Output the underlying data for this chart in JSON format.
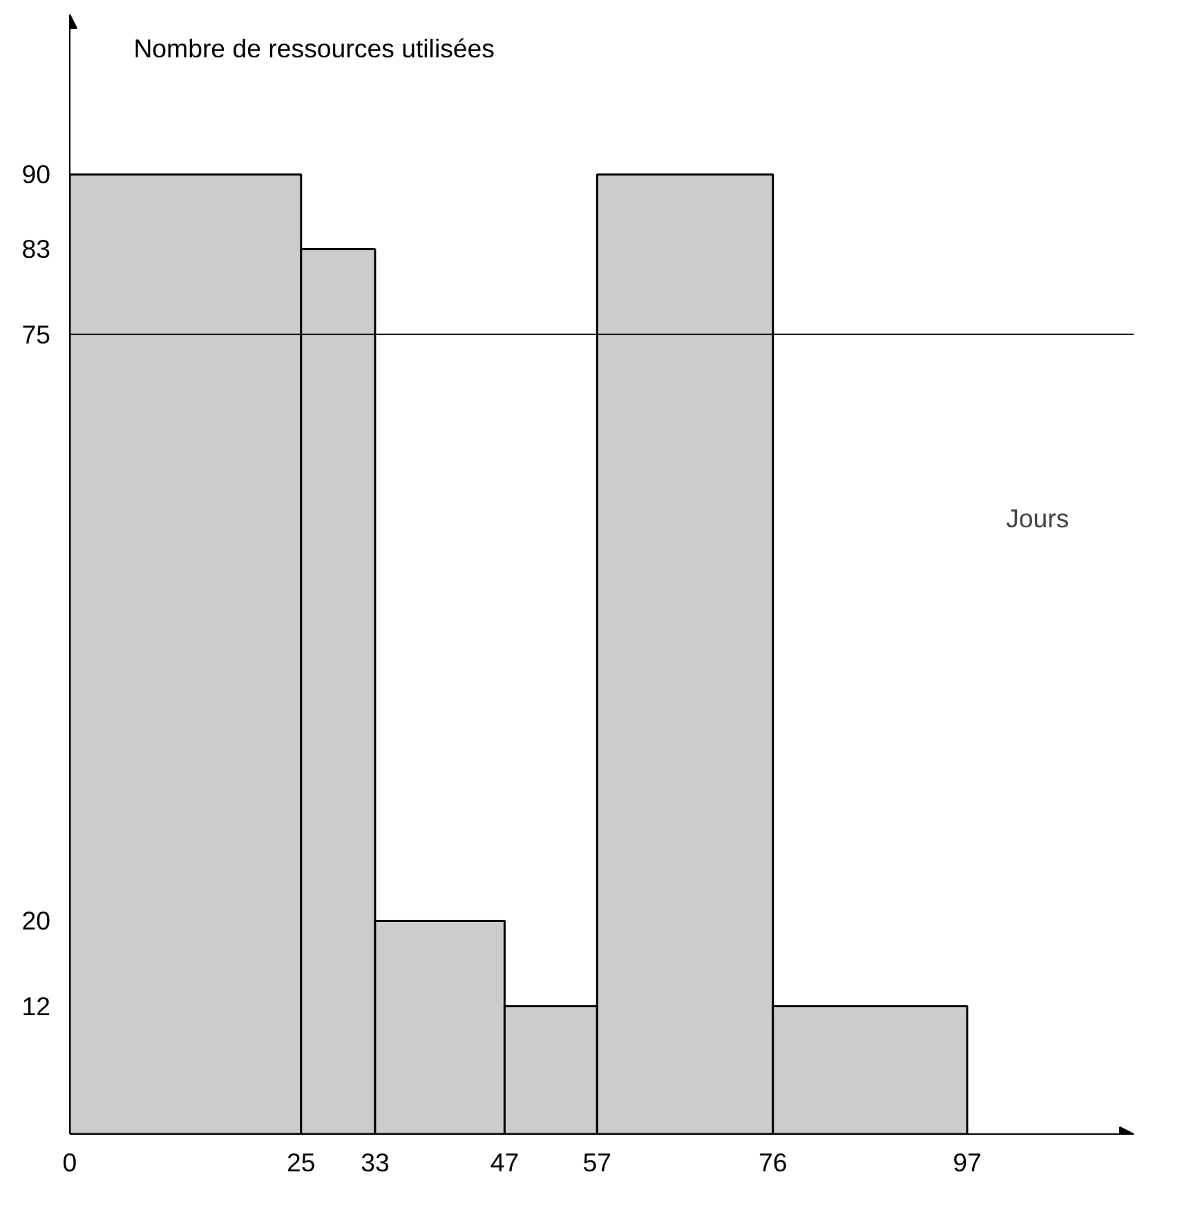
{
  "chart_data": {
    "type": "histogram",
    "ylabel": "Nombre de ressources utilisées",
    "xlabel": "Jours",
    "bins": [
      0,
      25,
      33,
      47,
      57,
      76,
      97
    ],
    "values": [
      90,
      83,
      20,
      12,
      90,
      12
    ],
    "color": "#cccccc",
    "xlim": [
      0,
      115
    ],
    "ylim": [
      0,
      105
    ],
    "xticks": [
      0,
      25,
      33,
      47,
      57,
      76,
      97
    ],
    "yticks": [
      12,
      20,
      75,
      83,
      90
    ],
    "ref_lines": [
      {
        "axis": "y",
        "value": 75,
        "label": null,
        "color": "#000000"
      }
    ],
    "grid": false
  }
}
